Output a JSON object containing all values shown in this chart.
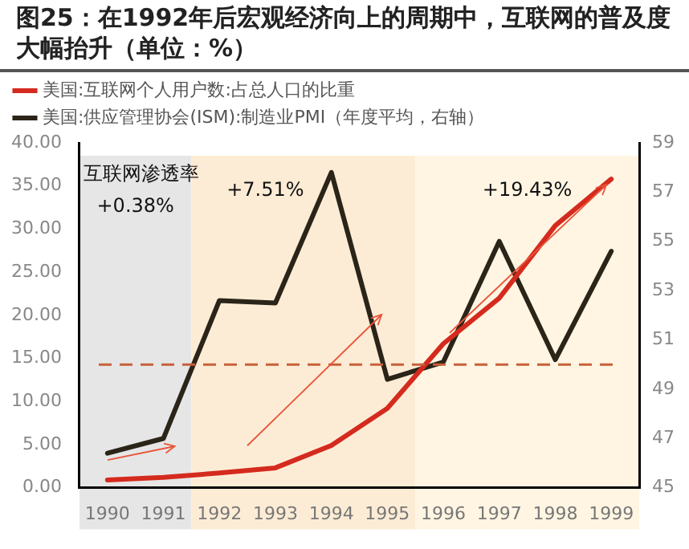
{
  "chart_data": {
    "type": "line",
    "title": "图25：在1992年后宏观经济向上的周期中，互联网的普及度大幅抬升（单位：%）",
    "categories": [
      "1990",
      "1991",
      "1992",
      "1993",
      "1994",
      "1995",
      "1996",
      "1997",
      "1998",
      "1999"
    ],
    "series": [
      {
        "name": "美国:互联网个人用户数:占总人口的比重",
        "color": "#d52a1e",
        "values": [
          0.9,
          1.2,
          1.7,
          2.3,
          4.9,
          9.2,
          16.7,
          22.0,
          30.4,
          35.8
        ]
      },
      {
        "name": "美国:供应管理协会(ISM):制造业PMI（年度平均，右轴）",
        "color": "#2b2418",
        "axis": "y2",
        "values": [
          46.4,
          47.0,
          52.6,
          52.5,
          57.8,
          49.4,
          50.1,
          55.0,
          50.2,
          54.6
        ]
      }
    ],
    "ylim": [
      0,
      40
    ],
    "yticks": [
      {
        "value": 0,
        "label": "0.00"
      },
      {
        "value": 5,
        "label": "5.00"
      },
      {
        "value": 10,
        "label": "10.00"
      },
      {
        "value": 15,
        "label": "15.00"
      },
      {
        "value": 20,
        "label": "20.00"
      },
      {
        "value": 25,
        "label": "25.00"
      },
      {
        "value": 30,
        "label": "30.00"
      },
      {
        "value": 35,
        "label": "35.00"
      },
      {
        "value": 40,
        "label": "40.00"
      }
    ],
    "y2lim": [
      45,
      59
    ],
    "y2ticks": [
      45,
      47,
      49,
      51,
      53,
      55,
      57,
      59
    ],
    "ref_lines": [
      {
        "axis": "y2",
        "value": 50,
        "color": "#c8603a",
        "line_style": "dashed"
      }
    ],
    "bands": [
      {
        "axis": "x",
        "from": "1990",
        "to": "1991",
        "label": "+0.38%",
        "color": "#e6e6e6"
      },
      {
        "axis": "x",
        "from": "1992",
        "to": "1995",
        "label": "+7.51%",
        "color": "#fdecd5"
      },
      {
        "axis": "x",
        "from": "1996",
        "to": "1999",
        "label": "+19.43%",
        "color": "#fff5e2"
      }
    ],
    "annotations": [
      "互联网渗透率"
    ],
    "legend": "top",
    "grid": false,
    "marker": "none",
    "line_style": "solid"
  }
}
